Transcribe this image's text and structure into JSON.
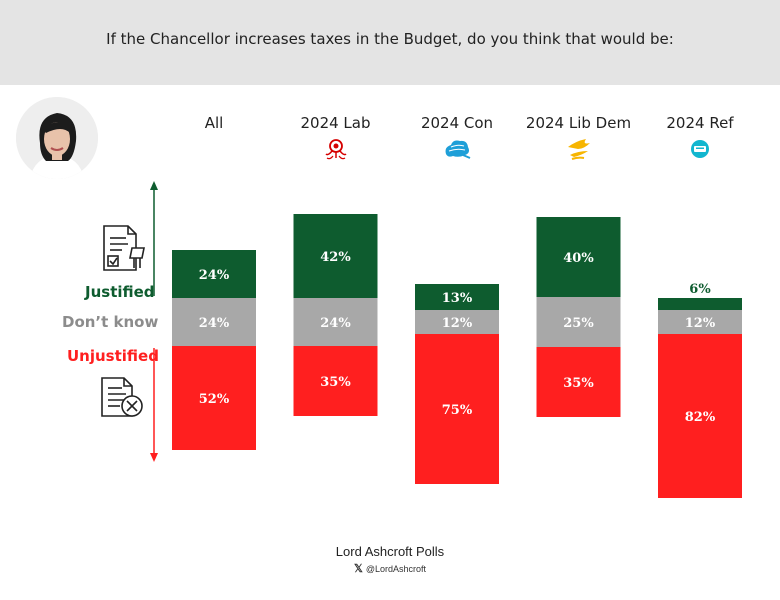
{
  "header": {
    "title": "If the Chancellor increases taxes in the Budget, do you think that would be:"
  },
  "legend": {
    "justified": "Justified",
    "dont_know": "Don’t know",
    "unjustified": "Unjustified"
  },
  "colors": {
    "justified": "#0e5c2f",
    "dont_know": "#a8a8a8",
    "unjustified": "#ff1f1f",
    "header_bg": "#e4e4e4"
  },
  "icons": {
    "party": [
      "",
      "labour-rose-icon",
      "conservative-tree-icon",
      "lib-dem-bird-icon",
      "reform-logo-icon"
    ],
    "legend": [
      "checklist-document-icon",
      "rejected-document-icon"
    ]
  },
  "footer": {
    "name": "Lord Ashcroft Polls",
    "x_glyph": "𝕏",
    "handle": "@LordAshcroft"
  },
  "chart_data": {
    "type": "bar",
    "stacked": true,
    "title": "If the Chancellor increases taxes in the Budget, do you think that would be:",
    "categories": [
      "All",
      "2024 Lab",
      "2024 Con",
      "2024 Lib Dem",
      "2024 Ref"
    ],
    "series": [
      {
        "name": "Justified",
        "values": [
          24,
          42,
          13,
          40,
          6
        ]
      },
      {
        "name": "Don’t know",
        "values": [
          24,
          24,
          12,
          25,
          12
        ]
      },
      {
        "name": "Unjustified",
        "values": [
          52,
          35,
          75,
          35,
          82
        ]
      }
    ],
    "value_labels": {
      "Justified": [
        "24%",
        "42%",
        "13%",
        "40%",
        "6%"
      ],
      "Don’t know": [
        "24%",
        "24%",
        "12%",
        "25%",
        "12%"
      ],
      "Unjustified": [
        "52%",
        "35%",
        "75%",
        "35%",
        "82%"
      ]
    },
    "legend_placement": "left",
    "grid": false
  }
}
